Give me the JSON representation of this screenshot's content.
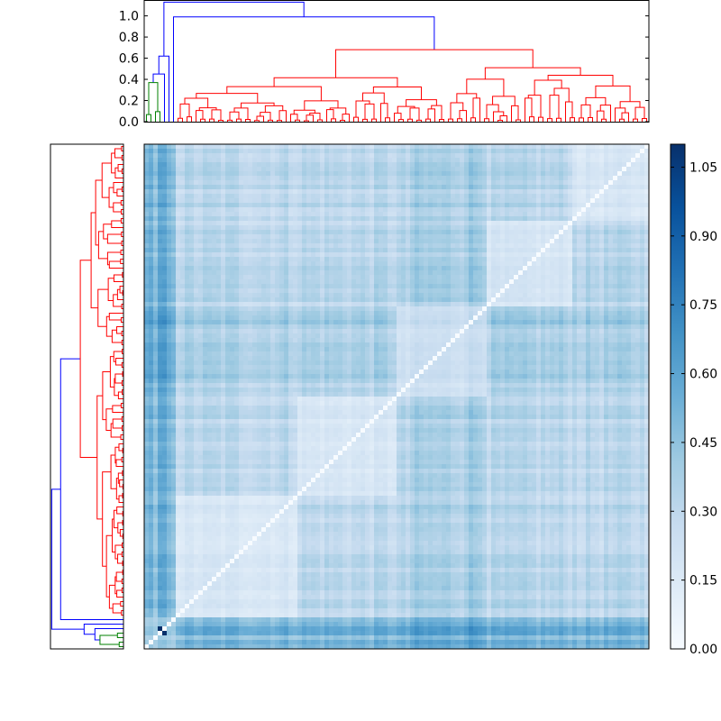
{
  "chart_data": [
    {
      "type": "dendrogram",
      "panel": "top",
      "ylim": [
        0,
        1.15
      ],
      "yticks": [
        {
          "value": 0.0,
          "label": "0.0"
        },
        {
          "value": 0.2,
          "label": "0.2"
        },
        {
          "value": 0.4,
          "label": "0.4"
        },
        {
          "value": 0.6,
          "label": "0.6"
        },
        {
          "value": 0.8,
          "label": "0.8"
        },
        {
          "value": 1.0,
          "label": "1.0"
        }
      ],
      "n_leaves": 112,
      "cluster_colors": {
        "root": "#0000ff",
        "cluster_small": "#008000",
        "cluster_large": "#ff0000"
      },
      "root_merge_height": 1.13,
      "sub_merge_height": 0.99,
      "green_cluster_max_height": 0.37,
      "red_cluster_max_height": 0.68
    },
    {
      "type": "dendrogram",
      "panel": "left",
      "orientation": "horizontal",
      "n_leaves": 112,
      "cluster_colors": {
        "root": "#0000ff",
        "cluster_small": "#008000",
        "cluster_large": "#ff0000"
      }
    },
    {
      "type": "heatmap",
      "panel": "main",
      "colormap": "Blues",
      "n_rows": 112,
      "n_cols": 112,
      "diagonal_value": 0.0,
      "value_range": [
        0.0,
        1.1
      ]
    },
    {
      "type": "colorbar",
      "panel": "colorbar",
      "colormap": "Blues",
      "range": [
        0.0,
        1.1
      ],
      "ticks": [
        {
          "value": 0.0,
          "label": "0.00"
        },
        {
          "value": 0.15,
          "label": "0.15"
        },
        {
          "value": 0.3,
          "label": "0.30"
        },
        {
          "value": 0.45,
          "label": "0.45"
        },
        {
          "value": 0.6,
          "label": "0.60"
        },
        {
          "value": 0.75,
          "label": "0.75"
        },
        {
          "value": 0.9,
          "label": "0.90"
        },
        {
          "value": 1.05,
          "label": "1.05"
        }
      ]
    }
  ]
}
